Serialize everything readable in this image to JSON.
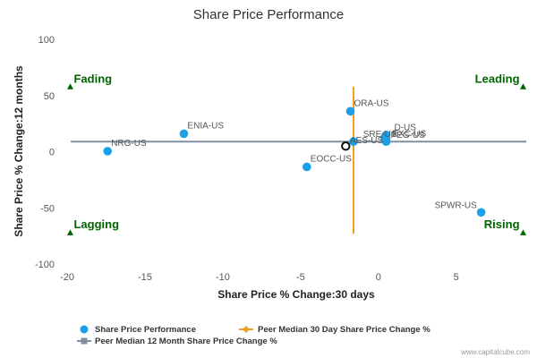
{
  "chart_data": {
    "type": "scatter",
    "title": "Share Price Performance",
    "xlabel": "Share Price % Change:30 days",
    "ylabel": "Share Price % Change:12 months",
    "xlim": [
      -20,
      9.5
    ],
    "ylim": [
      -100,
      100
    ],
    "xticks": [
      -20,
      -15,
      -10,
      -5,
      0,
      5
    ],
    "yticks": [
      -100,
      -50,
      0,
      50,
      100
    ],
    "grid": false,
    "legend_position": "bottom-left",
    "series": [
      {
        "name": "Share Price Performance",
        "color": "#1aa0e8",
        "points": [
          {
            "label": "NRG-US",
            "x": -17.4,
            "y": 0.5
          },
          {
            "label": "ENIA-US",
            "x": -12.5,
            "y": 16
          },
          {
            "label": "EOCC-US",
            "x": -4.6,
            "y": -13.5
          },
          {
            "label": "ORA-US",
            "x": -1.8,
            "y": 36
          },
          {
            "label": "SPWR-US",
            "x": 6.6,
            "y": -54
          },
          {
            "label": "AES-US",
            "x": -1.6,
            "y": 9
          },
          {
            "label": "SRE-US",
            "x": 0.4,
            "y": 12.5
          },
          {
            "label": "D-US",
            "x": 0.5,
            "y": 15
          },
          {
            "label": "PEG-US",
            "x": 0.5,
            "y": 9
          },
          {
            "label": "EXC-US",
            "x": 0.5,
            "y": 12
          }
        ]
      },
      {
        "name": "Peer Median 30 Day Share Price Change %",
        "color": "#f0a020",
        "value": -1.6,
        "y_range": [
          -73,
          58
        ]
      },
      {
        "name": "Peer Median 12 Month Share Price Change %",
        "color": "#8090a0",
        "value": 9
      }
    ],
    "highlight": {
      "x": -2.1,
      "y": 5
    },
    "quadrants": [
      {
        "label": "Fading",
        "x": -19.8,
        "y": 58
      },
      {
        "label": "Leading",
        "x": 9.3,
        "y": 58
      },
      {
        "label": "Lagging",
        "x": -19.8,
        "y": -72
      },
      {
        "label": "Rising",
        "x": 9.3,
        "y": -72
      }
    ],
    "quadrant_color": "#006400"
  },
  "credit": "www.capitalcube.com"
}
